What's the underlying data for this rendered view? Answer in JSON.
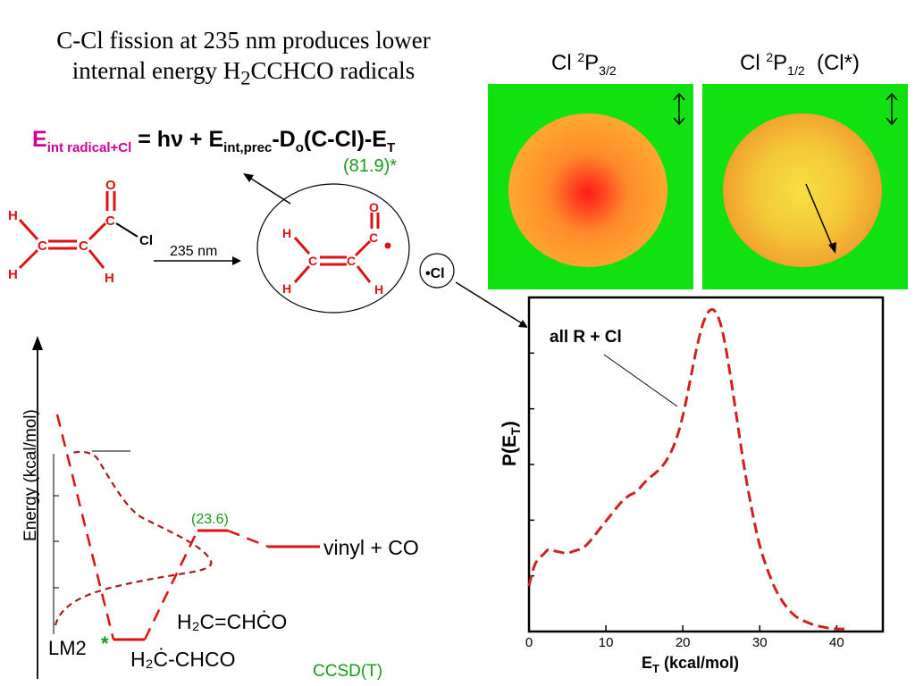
{
  "slide": {
    "title_line1": "C-Cl fission at 235 nm produces lower",
    "title_line2_pre": "internal energy H",
    "title_line2_sub": "2",
    "title_line2_post": "CCHCO radicals"
  },
  "equation": {
    "e": "E",
    "e_sub": "int radical+Cl",
    "mid": " = hν + E",
    "mid_sub": "int,prec",
    "d": "-D",
    "d_sub": "o",
    "tail": "(C-Cl)-E",
    "tail_sub": "T",
    "value": "(81.9)*"
  },
  "reaction": {
    "wavelength": "235 nm",
    "atoms": {
      "O": "O",
      "C": "C",
      "H": "H",
      "Cl": "Cl"
    },
    "cl_fragment": "•Cl"
  },
  "images": {
    "left_label_pre": "Cl ",
    "left_label_sup": "2",
    "left_label_main": "P",
    "left_label_sub": "3/2",
    "right_label_pre": "Cl ",
    "right_label_sup": "2",
    "right_label_main": "P",
    "right_label_sub": "1/2",
    "right_label_post": "  (Cl*)",
    "left_colors": {
      "center": "#ff1a1a",
      "mid": "#ff8a2a",
      "edge": "#ffe04a"
    },
    "right_colors": {
      "center": "#f8e040",
      "ring": "#f06010"
    }
  },
  "energy_diagram": {
    "ylabel": "Energy (kcal/mol)",
    "ts_value": "(23.6)",
    "vinyl_label": "vinyl + CO",
    "lm2_label": "LM2",
    "star": "*",
    "top_species": "H₂C=CHĊO",
    "bottom_species": "H₂Ċ-CHCO",
    "method": "CCSD(T)",
    "line_color": "#dd1111"
  },
  "chart_data": {
    "type": "line",
    "title": "",
    "annotation": "all R + Cl",
    "xlabel": "E",
    "xlabel_sub": "T",
    "xlabel_unit": " (kcal/mol)",
    "ylabel": "P(E",
    "ylabel_sub": "T",
    "ylabel_close": ")",
    "xlim": [
      0,
      46
    ],
    "ylim": [
      0,
      1.03
    ],
    "xticks": [
      0,
      10,
      20,
      30,
      40
    ],
    "xtick_labels": [
      "0",
      "10",
      "20",
      "30",
      "40"
    ],
    "yticks_count": 5,
    "grid": false,
    "legend": "none",
    "series": [
      {
        "color": "#cc2222",
        "x": [
          0,
          0.5,
          1,
          2,
          2.5,
          3,
          4,
          5,
          6,
          7,
          8,
          9,
          10,
          11,
          12,
          13,
          14,
          15,
          16,
          17,
          18,
          19,
          20,
          21,
          22,
          23,
          24,
          25,
          26,
          27,
          28,
          29,
          30,
          31,
          32,
          33,
          34,
          35,
          36,
          37,
          38,
          39,
          40,
          41
        ],
        "y": [
          0.14,
          0.19,
          0.22,
          0.24,
          0.255,
          0.25,
          0.245,
          0.24,
          0.25,
          0.255,
          0.28,
          0.31,
          0.34,
          0.37,
          0.4,
          0.42,
          0.43,
          0.46,
          0.48,
          0.5,
          0.53,
          0.58,
          0.66,
          0.78,
          0.9,
          0.98,
          1.0,
          0.95,
          0.82,
          0.66,
          0.5,
          0.37,
          0.26,
          0.19,
          0.13,
          0.09,
          0.06,
          0.04,
          0.03,
          0.02,
          0.015,
          0.01,
          0.008,
          0.008
        ]
      }
    ]
  }
}
